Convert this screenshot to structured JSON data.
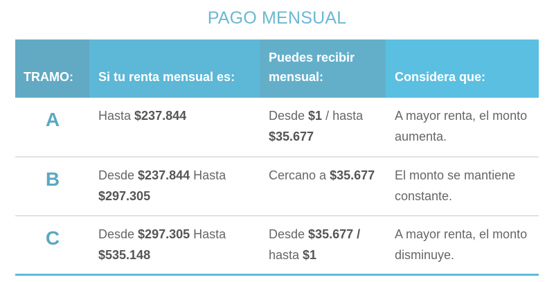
{
  "title": "PAGO MENSUAL",
  "colors": {
    "header_dark": "#62a9c3",
    "header_light": "#5bbfe1",
    "letter": "#5ba8c2",
    "bottom_border": "#5bbcd9"
  },
  "headers": [
    "TRAMO:",
    "Si tu renta mensual es:",
    "Puedes recibir mensual:",
    "Considera que:"
  ],
  "rows": [
    {
      "tramo": "A",
      "renta": [
        {
          "t": "Hasta "
        },
        {
          "t": "$237.844",
          "b": true
        }
      ],
      "recibir": [
        {
          "t": "Desde "
        },
        {
          "t": "$1",
          "b": true
        },
        {
          "t": " / hasta "
        },
        {
          "t": "$35.677",
          "b": true
        }
      ],
      "considera": "A mayor renta, el monto aumenta."
    },
    {
      "tramo": "B",
      "renta": [
        {
          "t": "Desde "
        },
        {
          "t": "$237.844",
          "b": true
        },
        {
          "t": " Hasta "
        },
        {
          "t": "$297.305",
          "b": true
        }
      ],
      "recibir": [
        {
          "t": "Cercano a "
        },
        {
          "t": "$35.677",
          "b": true
        }
      ],
      "considera": "El monto se mantiene constante."
    },
    {
      "tramo": "C",
      "renta": [
        {
          "t": "Desde "
        },
        {
          "t": "$297.305",
          "b": true
        },
        {
          "t": " Hasta "
        },
        {
          "t": "$535.148",
          "b": true
        }
      ],
      "recibir": [
        {
          "t": "Desde "
        },
        {
          "t": "$35.677 /",
          "b": true
        },
        {
          "t": " hasta "
        },
        {
          "t": "$1",
          "b": true
        }
      ],
      "considera": "A mayor renta, el monto disminuye."
    }
  ]
}
